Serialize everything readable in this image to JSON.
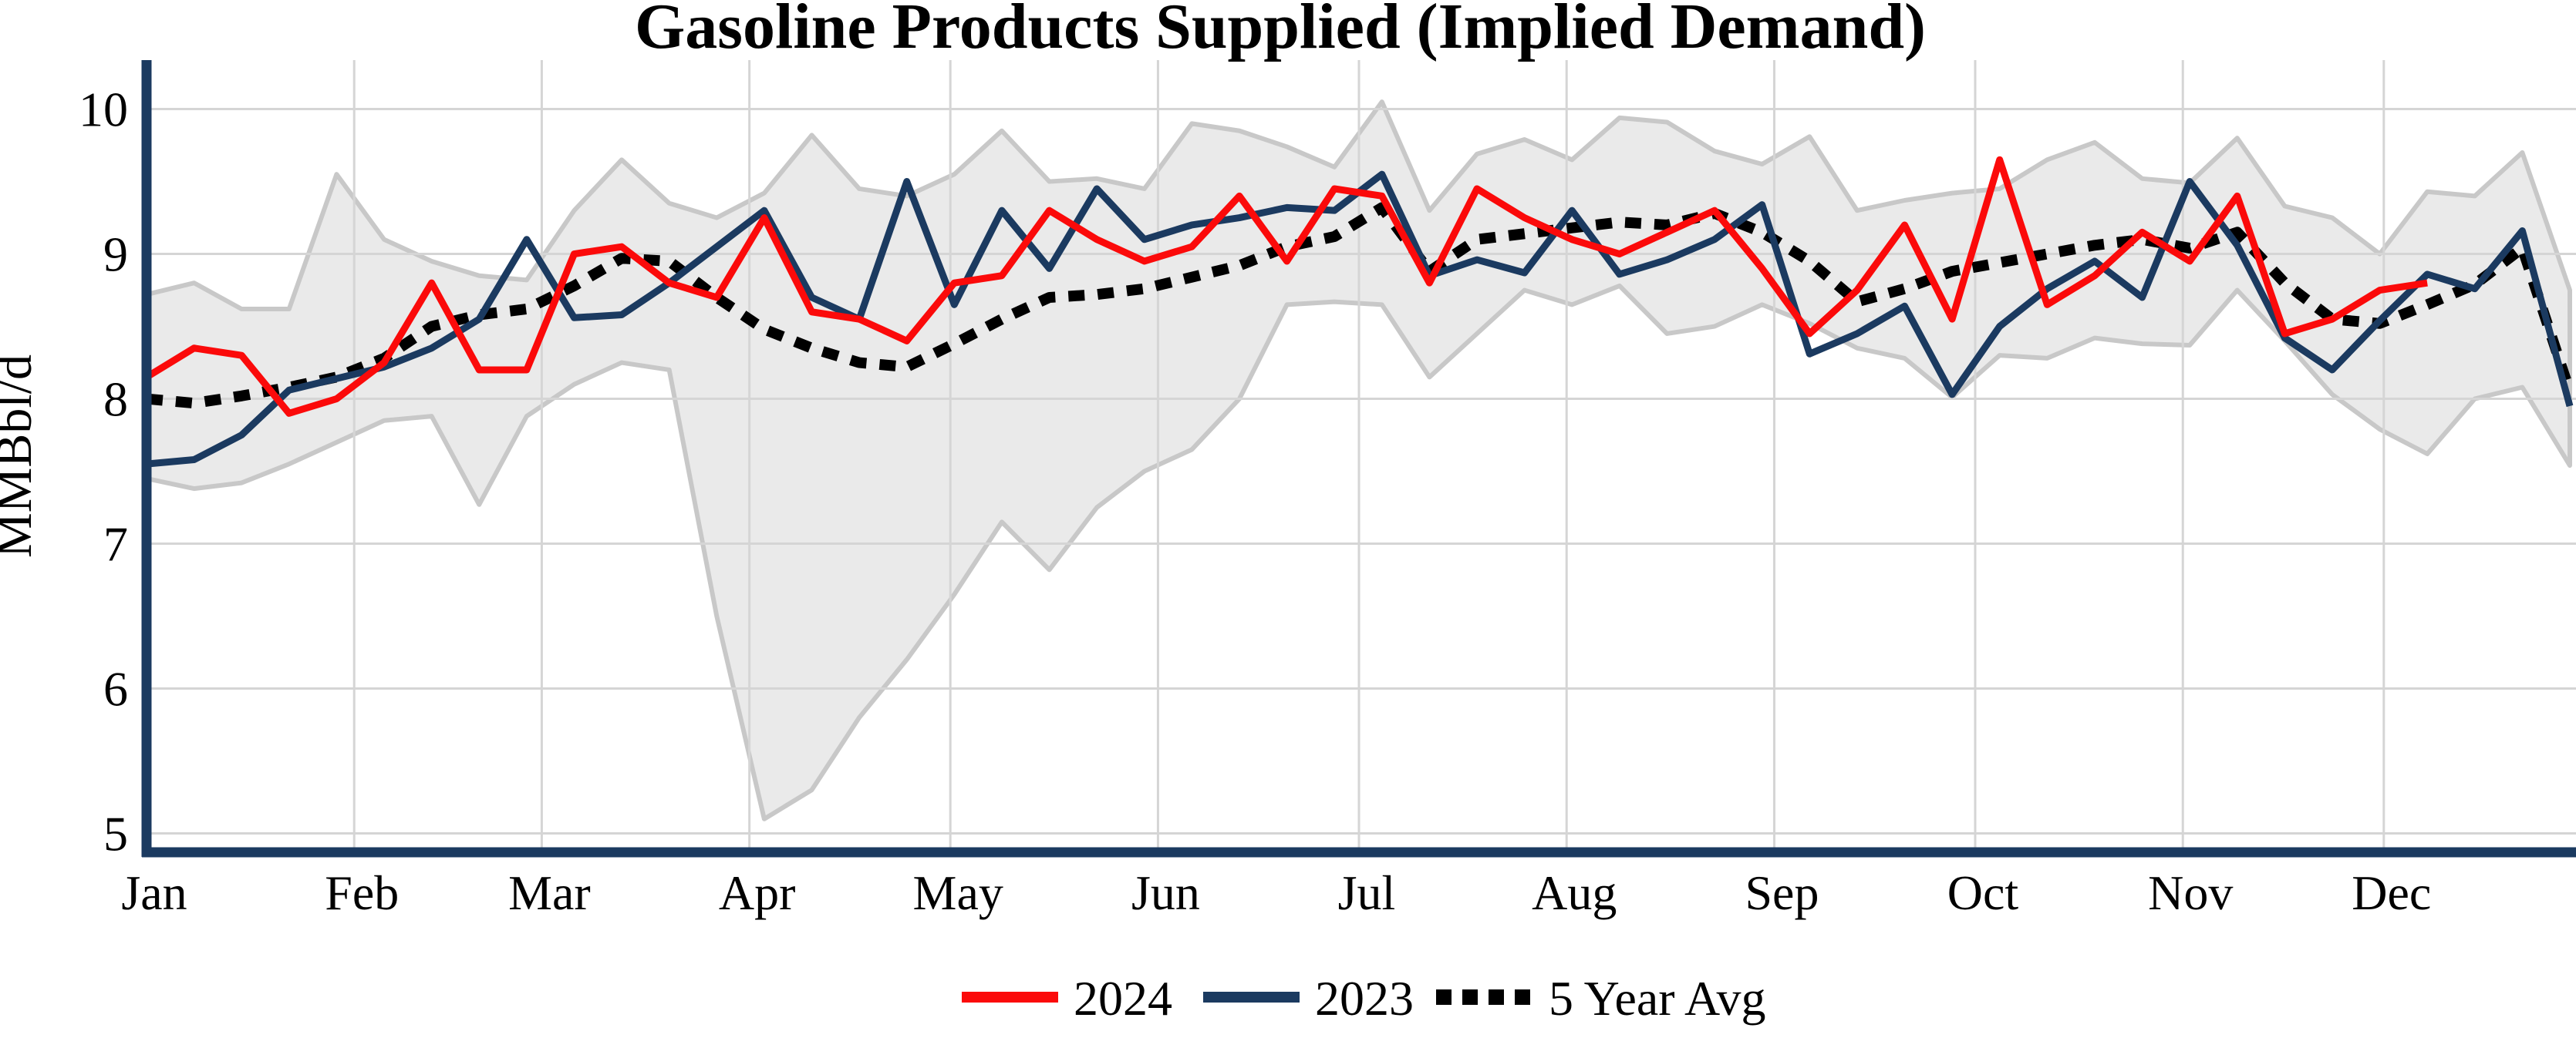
{
  "chart_data": {
    "type": "line",
    "title": "Gasoline Products Supplied (Implied Demand)",
    "ylabel": "MMBbl/d",
    "ylim": [
      4.87,
      10.45
    ],
    "yticks": [
      "10",
      "9",
      "8",
      "7",
      "6",
      "5"
    ],
    "ytick_values": [
      10,
      9,
      8,
      7,
      6,
      5
    ],
    "grid": true,
    "legend_position": "bottom-center",
    "x_axis": {
      "unit": "weekly",
      "months": [
        "Jan",
        "Feb",
        "Mar",
        "Apr",
        "May",
        "Jun",
        "Jul",
        "Aug",
        "Sep",
        "Oct",
        "Nov",
        "Dec"
      ],
      "month_day_starts": [
        0,
        31,
        59,
        90,
        120,
        151,
        181,
        212,
        243,
        273,
        304,
        334
      ]
    },
    "colors": {
      "red_2024": "#fb0a0a",
      "navy_2023": "#1b3a60",
      "avg_black": "#000000",
      "band_fill": "#eaeaea",
      "band_edge": "#c8c8c8",
      "grid": "#d5d5d5",
      "axis": "#1b3a60"
    },
    "series": [
      {
        "name": "2024",
        "style": "solid",
        "color": "#fb0a0a",
        "values": [
          8.15,
          8.35,
          8.3,
          7.9,
          8.0,
          8.25,
          8.8,
          8.2,
          8.2,
          9.0,
          9.05,
          8.8,
          8.7,
          9.25,
          8.6,
          8.55,
          8.4,
          8.8,
          8.85,
          9.3,
          9.1,
          8.95,
          9.05,
          9.4,
          8.95,
          9.45,
          9.4,
          8.8,
          9.45,
          9.25,
          9.1,
          9.0,
          9.15,
          9.3,
          8.9,
          8.45,
          8.75,
          9.2,
          8.55,
          9.65,
          8.65,
          8.85,
          9.15,
          8.95,
          9.4,
          8.45,
          8.55,
          8.75,
          8.8
        ]
      },
      {
        "name": "2023",
        "style": "solid",
        "color": "#1b3a60",
        "values": [
          7.55,
          7.58,
          7.75,
          8.06,
          8.14,
          8.22,
          8.35,
          8.55,
          9.1,
          8.56,
          8.58,
          8.8,
          9.05,
          9.3,
          8.7,
          8.55,
          9.5,
          8.65,
          9.3,
          8.9,
          9.45,
          9.1,
          9.2,
          9.25,
          9.32,
          9.3,
          9.55,
          8.85,
          8.96,
          8.87,
          9.3,
          8.86,
          8.96,
          9.1,
          9.34,
          8.31,
          8.45,
          8.64,
          8.03,
          8.5,
          8.76,
          8.95,
          8.7,
          9.5,
          9.06,
          8.42,
          8.2,
          8.54,
          8.86,
          8.76,
          9.16,
          7.95
        ]
      },
      {
        "name": "5 Year Avg",
        "style": "dotted",
        "color": "#000000",
        "values": [
          8.0,
          7.97,
          8.02,
          8.08,
          8.15,
          8.28,
          8.5,
          8.58,
          8.62,
          8.78,
          8.97,
          8.95,
          8.7,
          8.48,
          8.35,
          8.25,
          8.22,
          8.38,
          8.55,
          8.7,
          8.72,
          8.76,
          8.84,
          8.92,
          9.05,
          9.12,
          9.32,
          8.88,
          9.1,
          9.14,
          9.18,
          9.22,
          9.2,
          9.28,
          9.15,
          8.95,
          8.67,
          8.76,
          8.88,
          8.94,
          9.0,
          9.06,
          9.1,
          9.04,
          9.15,
          8.8,
          8.55,
          8.52,
          8.65,
          8.79,
          9.04,
          8.05
        ]
      }
    ],
    "band": {
      "name": "5-year range",
      "fill": "#eaeaea",
      "edge": "#c8c8c8",
      "lower": [
        7.45,
        7.38,
        7.42,
        7.55,
        7.7,
        7.85,
        7.88,
        7.27,
        7.88,
        8.1,
        8.25,
        8.2,
        6.5,
        5.1,
        5.3,
        5.8,
        6.2,
        6.65,
        7.15,
        6.82,
        7.25,
        7.5,
        7.65,
        8.0,
        8.65,
        8.67,
        8.65,
        8.15,
        8.45,
        8.75,
        8.65,
        8.78,
        8.45,
        8.5,
        8.65,
        8.52,
        8.35,
        8.28,
        8.01,
        8.3,
        8.28,
        8.42,
        8.38,
        8.37,
        8.75,
        8.4,
        8.03,
        7.79,
        7.62,
        8.0,
        8.08,
        7.54
      ],
      "upper": [
        8.72,
        8.8,
        8.62,
        8.62,
        9.55,
        9.1,
        8.95,
        8.85,
        8.82,
        9.3,
        9.65,
        9.35,
        9.25,
        9.42,
        9.82,
        9.45,
        9.4,
        9.55,
        9.85,
        9.5,
        9.52,
        9.45,
        9.9,
        9.85,
        9.74,
        9.6,
        10.05,
        9.3,
        9.69,
        9.79,
        9.65,
        9.94,
        9.91,
        9.71,
        9.62,
        9.81,
        9.3,
        9.37,
        9.42,
        9.45,
        9.65,
        9.77,
        9.52,
        9.49,
        9.8,
        9.33,
        9.25,
        9.0,
        9.43,
        9.4,
        9.7,
        8.75
      ]
    },
    "legend": [
      "2024",
      "2023",
      "5 Year Avg"
    ]
  }
}
